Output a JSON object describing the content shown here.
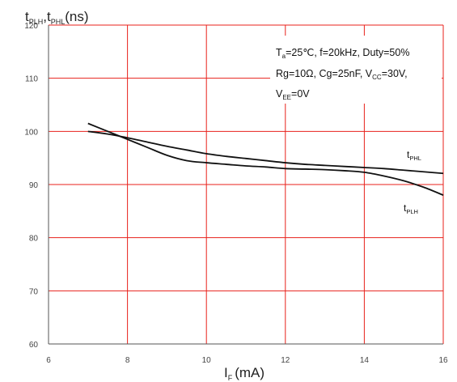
{
  "chart_data": {
    "type": "line",
    "ylabel": {
      "base1": "t",
      "sub1": "PLH",
      "sep": ",",
      "base2": "t",
      "sub2": "PHL",
      "unit": "(ns)"
    },
    "xlabel": {
      "base": "I",
      "sub": "F",
      "unit": "(mA)"
    },
    "xlim": [
      6,
      16
    ],
    "ylim": [
      60,
      120
    ],
    "x_ticks": [
      "6",
      "8",
      "10",
      "12",
      "14",
      "16"
    ],
    "y_ticks": [
      "60",
      "70",
      "80",
      "90",
      "100",
      "110",
      "120"
    ],
    "grid": true,
    "grid_color": "#e8211b",
    "line_color": "#111111",
    "conditions": [
      [
        {
          "t": "T"
        },
        {
          "t": "a",
          "sub": true
        },
        {
          "t": "=25℃, f=20kHz, Duty=50%"
        }
      ],
      [
        {
          "t": "Rg=10Ω, Cg=25nF, V"
        },
        {
          "t": "CC",
          "sub": true
        },
        {
          "t": "=30V,"
        }
      ],
      [
        {
          "t": "V"
        },
        {
          "t": "EE",
          "sub": true
        },
        {
          "t": "=0V"
        }
      ]
    ],
    "series": [
      {
        "label_base": "t",
        "label_sub": "PHL",
        "x": [
          7.0,
          7.5,
          8.0,
          8.5,
          9.0,
          9.5,
          10.0,
          10.5,
          11.0,
          11.5,
          12.0,
          12.5,
          13.0,
          13.5,
          14.0,
          14.5,
          15.0,
          15.5,
          16.0
        ],
        "y": [
          100.0,
          99.5,
          98.8,
          98.0,
          97.2,
          96.5,
          95.8,
          95.3,
          94.9,
          94.5,
          94.1,
          93.8,
          93.6,
          93.4,
          93.2,
          93.0,
          92.7,
          92.4,
          92.1
        ]
      },
      {
        "label_base": "t",
        "label_sub": "PLH",
        "x": [
          7.0,
          7.5,
          8.0,
          8.5,
          9.0,
          9.5,
          10.0,
          10.5,
          11.0,
          11.5,
          12.0,
          12.5,
          13.0,
          13.5,
          14.0,
          14.5,
          15.0,
          15.5,
          16.0
        ],
        "y": [
          101.5,
          100.0,
          98.5,
          97.0,
          95.5,
          94.5,
          94.1,
          93.8,
          93.5,
          93.3,
          93.0,
          92.9,
          92.8,
          92.6,
          92.3,
          91.6,
          90.7,
          89.5,
          88.0
        ]
      }
    ]
  }
}
